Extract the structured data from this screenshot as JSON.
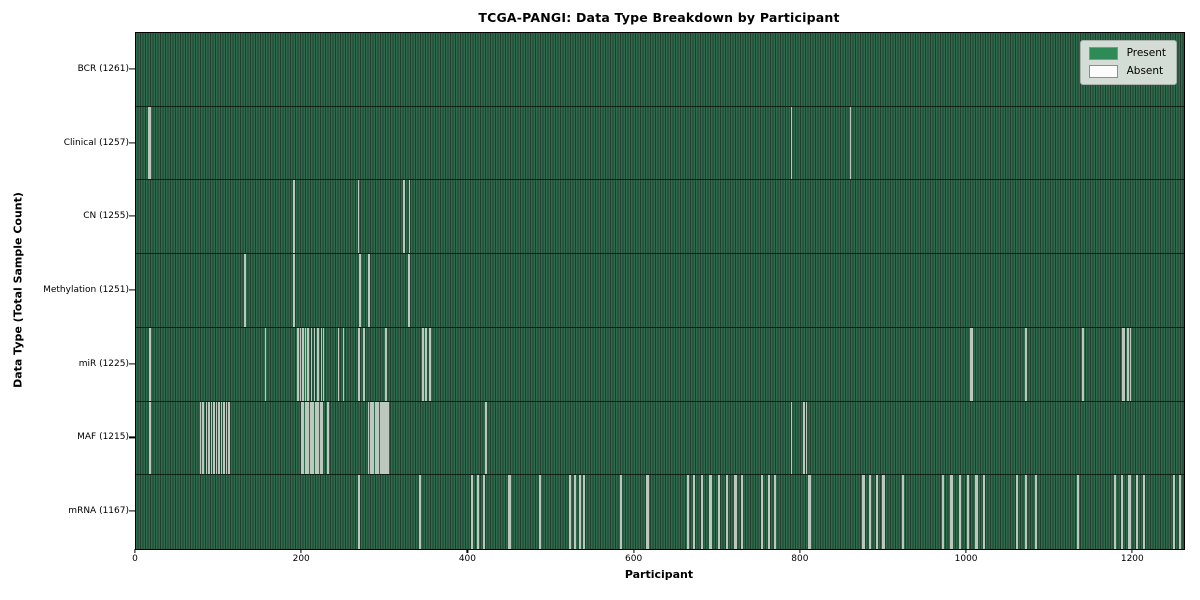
{
  "chart_data": {
    "type": "heatmap",
    "title": "TCGA-PANGI: Data Type Breakdown by Participant",
    "xlabel": "Participant",
    "ylabel": "Data Type (Total Sample Count)",
    "n_participants": 1261,
    "xlim": [
      0,
      1261
    ],
    "x_ticks": [
      0,
      200,
      400,
      600,
      800,
      1000,
      1200
    ],
    "grid": false,
    "legend_position": "upper right",
    "legend": [
      {
        "label": "Present",
        "color": "#2e8b57"
      },
      {
        "label": "Absent",
        "color": "#fcfcfc"
      }
    ],
    "colors": {
      "present": "#2e8b57",
      "present_stripe_dark": "#213e2e",
      "absent_line": "#bcc7bd",
      "legend_bg": "#d4dcd6"
    },
    "rows": [
      {
        "label": "BCR (1261)",
        "data_type": "BCR",
        "sample_count": 1261,
        "absent_participants": []
      },
      {
        "label": "Clinical (1257)",
        "data_type": "Clinical",
        "sample_count": 1257,
        "absent_participants": [
          15,
          16,
          788,
          859
        ]
      },
      {
        "label": "CN (1255)",
        "data_type": "CN",
        "sample_count": 1255,
        "absent_participants": [
          189,
          190,
          267,
          321,
          322,
          328
        ]
      },
      {
        "label": "Methylation (1251)",
        "data_type": "Methylation",
        "sample_count": 1251,
        "absent_participants": [
          130,
          131,
          189,
          190,
          268,
          269,
          279,
          280,
          327,
          328
        ]
      },
      {
        "label": "miR (1225)",
        "data_type": "miR",
        "sample_count": 1225,
        "absent_participants": [
          16,
          155,
          194,
          197,
          200,
          203,
          206,
          210,
          214,
          218,
          222,
          225,
          243,
          249,
          267,
          268,
          273,
          274,
          300,
          344,
          345,
          348,
          349,
          352,
          353,
          1004,
          1005,
          1070,
          1071,
          1138,
          1139,
          1187,
          1188,
          1192,
          1193,
          1196
        ]
      },
      {
        "label": "MAF (1215)",
        "data_type": "MAF",
        "sample_count": 1215,
        "absent_participants": [
          16,
          77,
          80,
          84,
          87,
          90,
          93,
          96,
          99,
          102,
          105,
          108,
          111,
          199,
          201,
          203,
          205,
          207,
          209,
          211,
          213,
          215,
          217,
          219,
          221,
          223,
          230,
          279,
          281,
          283,
          285,
          287,
          289,
          291,
          293,
          295,
          297,
          299,
          301,
          303,
          420,
          421,
          788,
          802,
          803,
          806
        ]
      },
      {
        "label": "mRNA (1167)",
        "data_type": "mRNA",
        "sample_count": 1167,
        "absent_participants": [
          267,
          268,
          340,
          341,
          403,
          404,
          410,
          411,
          417,
          418,
          448,
          449,
          485,
          486,
          521,
          522,
          527,
          528,
          533,
          534,
          538,
          539,
          582,
          583,
          614,
          615,
          663,
          664,
          670,
          671,
          680,
          681,
          690,
          691,
          700,
          701,
          710,
          711,
          720,
          721,
          728,
          729,
          752,
          753,
          760,
          761,
          768,
          769,
          809,
          810,
          874,
          875,
          882,
          883,
          890,
          891,
          898,
          899,
          922,
          923,
          970,
          971,
          980,
          981,
          990,
          991,
          1000,
          1001,
          1010,
          1011,
          1019,
          1020,
          1059,
          1060,
          1070,
          1071,
          1082,
          1083,
          1132,
          1133,
          1177,
          1178,
          1185,
          1186,
          1194,
          1195,
          1203,
          1204,
          1212,
          1213,
          1248,
          1249,
          1255,
          1256
        ]
      }
    ]
  }
}
